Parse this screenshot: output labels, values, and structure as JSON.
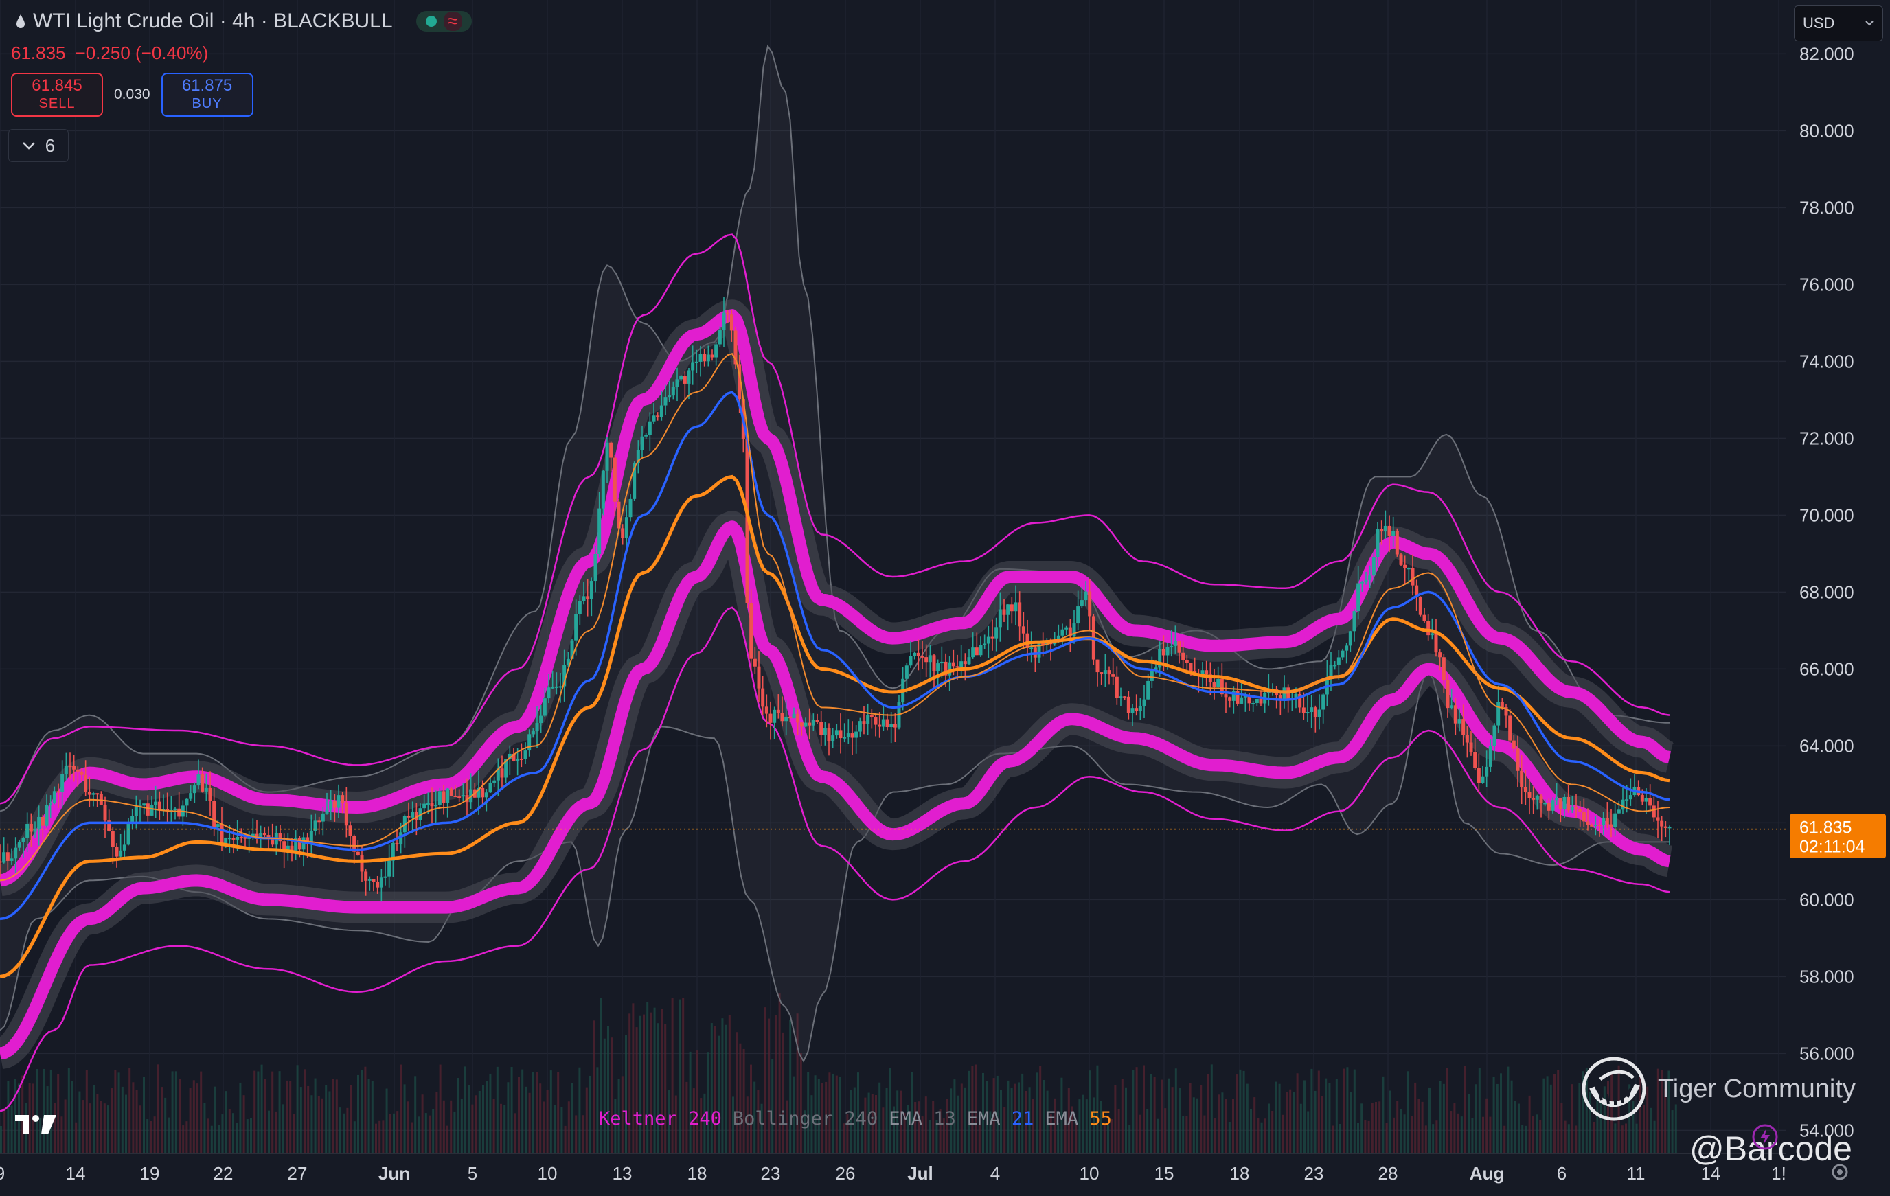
{
  "header": {
    "title": "WTI Light Crude Oil · 4h · BLACKBULL",
    "last": "61.835",
    "change": "−0.250 (−0.40%)",
    "sell_price": "61.845",
    "sell_label": "SELL",
    "spread": "0.030",
    "buy_price": "61.875",
    "buy_label": "BUY",
    "indicator_count": "6",
    "currency": "USD"
  },
  "watermark": {
    "brand": "Tiger Community",
    "handle": "@Barcode"
  },
  "colors": {
    "background": "#161a25",
    "up": "#26a69a",
    "down": "#ef5350",
    "keltner": "#e11ecf",
    "bollinger": "#6b6f78",
    "ema13": "#f28a2e",
    "ema21": "#2962ff",
    "ema55": "#ff8c1a"
  },
  "chart_data": {
    "type": "candlestick",
    "ylim": [
      53.4,
      83.4
    ],
    "yticks": [
      "82.000",
      "80.000",
      "78.000",
      "76.000",
      "74.000",
      "72.000",
      "70.000",
      "68.000",
      "66.000",
      "64.000",
      "62.000",
      "60.000",
      "58.000",
      "56.000",
      "54.000"
    ],
    "yvalues": [
      82,
      80,
      78,
      76,
      74,
      72,
      70,
      68,
      66,
      64,
      62,
      60,
      58,
      56,
      54
    ],
    "xticks": [
      "9",
      "14",
      "19",
      "22",
      "27",
      "Jun",
      "5",
      "10",
      "13",
      "18",
      "23",
      "26",
      "Jul",
      "4",
      "10",
      "15",
      "18",
      "23",
      "28",
      "Aug",
      "6",
      "11",
      "14",
      "1!"
    ],
    "current_price": 61.835,
    "current_price_label": "61.835",
    "countdown": "02:11:04",
    "legend": [
      {
        "name": "Keltner",
        "value": "240"
      },
      {
        "name": "Bollinger",
        "value": "240"
      },
      {
        "name": "EMA",
        "value": "13"
      },
      {
        "name": "EMA",
        "value": "21"
      },
      {
        "name": "EMA",
        "value": "55"
      }
    ],
    "price_path": [
      [
        0,
        61.0
      ],
      [
        0.02,
        62.0
      ],
      [
        0.04,
        63.4
      ],
      [
        0.055,
        62.6
      ],
      [
        0.065,
        61.3
      ],
      [
        0.08,
        62.4
      ],
      [
        0.1,
        62.2
      ],
      [
        0.11,
        63.2
      ],
      [
        0.125,
        61.6
      ],
      [
        0.145,
        61.7
      ],
      [
        0.165,
        61.4
      ],
      [
        0.19,
        62.5
      ],
      [
        0.2,
        61.0
      ],
      [
        0.21,
        60.4
      ],
      [
        0.23,
        62.2
      ],
      [
        0.25,
        62.7
      ],
      [
        0.27,
        62.8
      ],
      [
        0.29,
        63.8
      ],
      [
        0.31,
        65.4
      ],
      [
        0.33,
        68.0
      ],
      [
        0.34,
        71.8
      ],
      [
        0.348,
        69.5
      ],
      [
        0.36,
        72.2
      ],
      [
        0.38,
        73.5
      ],
      [
        0.4,
        74.3
      ],
      [
        0.408,
        75.3
      ],
      [
        0.415,
        73.0
      ],
      [
        0.42,
        66.5
      ],
      [
        0.43,
        64.8
      ],
      [
        0.45,
        64.6
      ],
      [
        0.47,
        64.2
      ],
      [
        0.49,
        64.7
      ],
      [
        0.5,
        64.4
      ],
      [
        0.51,
        66.4
      ],
      [
        0.53,
        66.0
      ],
      [
        0.55,
        66.6
      ],
      [
        0.565,
        67.7
      ],
      [
        0.58,
        66.5
      ],
      [
        0.6,
        67.0
      ],
      [
        0.607,
        67.9
      ],
      [
        0.615,
        66.0
      ],
      [
        0.635,
        65.0
      ],
      [
        0.655,
        66.6
      ],
      [
        0.67,
        65.8
      ],
      [
        0.7,
        65.1
      ],
      [
        0.72,
        65.4
      ],
      [
        0.735,
        64.8
      ],
      [
        0.75,
        66.4
      ],
      [
        0.765,
        68.5
      ],
      [
        0.775,
        69.8
      ],
      [
        0.79,
        68.4
      ],
      [
        0.8,
        67.0
      ],
      [
        0.815,
        64.8
      ],
      [
        0.83,
        63.0
      ],
      [
        0.84,
        65.0
      ],
      [
        0.855,
        62.8
      ],
      [
        0.87,
        62.5
      ],
      [
        0.9,
        62.0
      ],
      [
        0.915,
        62.9
      ],
      [
        0.935,
        61.8
      ]
    ],
    "keltner_mid": [
      [
        0,
        58.0
      ],
      [
        0.05,
        61.0
      ],
      [
        0.08,
        61.1
      ],
      [
        0.11,
        61.5
      ],
      [
        0.15,
        61.3
      ],
      [
        0.2,
        61.0
      ],
      [
        0.25,
        61.2
      ],
      [
        0.29,
        62.0
      ],
      [
        0.33,
        65.0
      ],
      [
        0.36,
        68.5
      ],
      [
        0.39,
        70.5
      ],
      [
        0.41,
        71.0
      ],
      [
        0.43,
        68.5
      ],
      [
        0.46,
        66.0
      ],
      [
        0.5,
        65.4
      ],
      [
        0.54,
        66.0
      ],
      [
        0.58,
        66.7
      ],
      [
        0.61,
        66.8
      ],
      [
        0.64,
        66.2
      ],
      [
        0.68,
        65.8
      ],
      [
        0.72,
        65.4
      ],
      [
        0.75,
        65.8
      ],
      [
        0.78,
        67.3
      ],
      [
        0.8,
        67.0
      ],
      [
        0.84,
        65.5
      ],
      [
        0.88,
        64.2
      ],
      [
        0.92,
        63.3
      ],
      [
        0.935,
        63.1
      ]
    ],
    "keltner_upper_thick": [
      [
        0,
        60.5
      ],
      [
        0.05,
        63.3
      ],
      [
        0.08,
        63.0
      ],
      [
        0.11,
        63.2
      ],
      [
        0.15,
        62.6
      ],
      [
        0.2,
        62.4
      ],
      [
        0.25,
        63.0
      ],
      [
        0.29,
        64.5
      ],
      [
        0.33,
        68.8
      ],
      [
        0.36,
        73.0
      ],
      [
        0.39,
        74.7
      ],
      [
        0.41,
        75.2
      ],
      [
        0.43,
        72.0
      ],
      [
        0.46,
        67.8
      ],
      [
        0.5,
        66.8
      ],
      [
        0.54,
        67.2
      ],
      [
        0.565,
        68.4
      ],
      [
        0.6,
        68.4
      ],
      [
        0.635,
        67.0
      ],
      [
        0.68,
        66.6
      ],
      [
        0.72,
        66.7
      ],
      [
        0.75,
        67.3
      ],
      [
        0.78,
        69.3
      ],
      [
        0.8,
        69.0
      ],
      [
        0.84,
        66.8
      ],
      [
        0.88,
        65.4
      ],
      [
        0.92,
        64.1
      ],
      [
        0.935,
        63.7
      ]
    ],
    "keltner_lower_thick": [
      [
        0,
        56.0
      ],
      [
        0.05,
        59.5
      ],
      [
        0.08,
        60.3
      ],
      [
        0.11,
        60.5
      ],
      [
        0.15,
        60.0
      ],
      [
        0.2,
        59.8
      ],
      [
        0.25,
        59.8
      ],
      [
        0.29,
        60.3
      ],
      [
        0.33,
        62.5
      ],
      [
        0.36,
        66.0
      ],
      [
        0.39,
        68.4
      ],
      [
        0.41,
        69.7
      ],
      [
        0.43,
        66.5
      ],
      [
        0.46,
        63.2
      ],
      [
        0.5,
        61.7
      ],
      [
        0.54,
        62.5
      ],
      [
        0.565,
        63.6
      ],
      [
        0.6,
        64.7
      ],
      [
        0.635,
        64.2
      ],
      [
        0.68,
        63.5
      ],
      [
        0.72,
        63.3
      ],
      [
        0.75,
        63.7
      ],
      [
        0.78,
        65.2
      ],
      [
        0.8,
        66.0
      ],
      [
        0.84,
        64.0
      ],
      [
        0.88,
        62.3
      ],
      [
        0.92,
        61.3
      ],
      [
        0.935,
        61.0
      ]
    ],
    "keltner_outer_upper": [
      [
        0,
        62.5
      ],
      [
        0.03,
        64.2
      ],
      [
        0.05,
        64.5
      ],
      [
        0.1,
        64.4
      ],
      [
        0.15,
        64.0
      ],
      [
        0.2,
        63.5
      ],
      [
        0.25,
        64.0
      ],
      [
        0.29,
        66.0
      ],
      [
        0.33,
        71.0
      ],
      [
        0.36,
        75.2
      ],
      [
        0.39,
        76.8
      ],
      [
        0.41,
        77.3
      ],
      [
        0.43,
        74.0
      ],
      [
        0.46,
        69.5
      ],
      [
        0.5,
        68.4
      ],
      [
        0.54,
        68.8
      ],
      [
        0.58,
        69.8
      ],
      [
        0.61,
        70.0
      ],
      [
        0.64,
        68.8
      ],
      [
        0.68,
        68.2
      ],
      [
        0.72,
        68.1
      ],
      [
        0.75,
        68.8
      ],
      [
        0.78,
        70.8
      ],
      [
        0.8,
        70.6
      ],
      [
        0.84,
        68.0
      ],
      [
        0.88,
        66.2
      ],
      [
        0.92,
        65.0
      ],
      [
        0.935,
        64.8
      ]
    ],
    "keltner_outer_lower": [
      [
        0,
        54.5
      ],
      [
        0.03,
        56.6
      ],
      [
        0.05,
        58.3
      ],
      [
        0.1,
        58.8
      ],
      [
        0.15,
        58.2
      ],
      [
        0.2,
        57.6
      ],
      [
        0.25,
        58.4
      ],
      [
        0.29,
        58.8
      ],
      [
        0.33,
        60.8
      ],
      [
        0.36,
        63.9
      ],
      [
        0.39,
        66.4
      ],
      [
        0.41,
        67.6
      ],
      [
        0.43,
        64.6
      ],
      [
        0.46,
        61.4
      ],
      [
        0.5,
        60.0
      ],
      [
        0.54,
        61.0
      ],
      [
        0.58,
        62.4
      ],
      [
        0.61,
        63.2
      ],
      [
        0.64,
        62.8
      ],
      [
        0.68,
        62.1
      ],
      [
        0.72,
        61.8
      ],
      [
        0.75,
        62.3
      ],
      [
        0.78,
        63.7
      ],
      [
        0.8,
        64.4
      ],
      [
        0.84,
        62.4
      ],
      [
        0.88,
        60.8
      ],
      [
        0.92,
        60.4
      ],
      [
        0.935,
        60.2
      ]
    ],
    "bollinger_upper": [
      [
        0,
        62.3
      ],
      [
        0.03,
        64.4
      ],
      [
        0.05,
        64.8
      ],
      [
        0.08,
        63.8
      ],
      [
        0.11,
        63.8
      ],
      [
        0.15,
        62.8
      ],
      [
        0.2,
        63.2
      ],
      [
        0.25,
        64.0
      ],
      [
        0.3,
        67.5
      ],
      [
        0.32,
        72.0
      ],
      [
        0.34,
        76.5
      ],
      [
        0.36,
        75.0
      ],
      [
        0.38,
        74.0
      ],
      [
        0.4,
        74.5
      ],
      [
        0.42,
        78.5
      ],
      [
        0.43,
        82.2
      ],
      [
        0.44,
        81.0
      ],
      [
        0.45,
        76.0
      ],
      [
        0.47,
        67.0
      ],
      [
        0.5,
        65.5
      ],
      [
        0.53,
        67.0
      ],
      [
        0.56,
        68.6
      ],
      [
        0.6,
        68.5
      ],
      [
        0.63,
        66.3
      ],
      [
        0.67,
        67.0
      ],
      [
        0.71,
        66.0
      ],
      [
        0.74,
        66.2
      ],
      [
        0.77,
        71.0
      ],
      [
        0.79,
        71.0
      ],
      [
        0.81,
        72.1
      ],
      [
        0.83,
        70.5
      ],
      [
        0.86,
        67.0
      ],
      [
        0.9,
        64.8
      ],
      [
        0.935,
        64.6
      ]
    ],
    "bollinger_lower": [
      [
        0,
        56.6
      ],
      [
        0.02,
        59.5
      ],
      [
        0.05,
        60.5
      ],
      [
        0.08,
        60.6
      ],
      [
        0.11,
        60.2
      ],
      [
        0.15,
        59.5
      ],
      [
        0.2,
        59.2
      ],
      [
        0.24,
        58.9
      ],
      [
        0.26,
        60.0
      ],
      [
        0.29,
        61.0
      ],
      [
        0.32,
        61.5
      ],
      [
        0.335,
        58.8
      ],
      [
        0.35,
        61.8
      ],
      [
        0.37,
        64.5
      ],
      [
        0.4,
        64.2
      ],
      [
        0.42,
        60.0
      ],
      [
        0.44,
        57.2
      ],
      [
        0.45,
        55.8
      ],
      [
        0.46,
        57.5
      ],
      [
        0.48,
        61.5
      ],
      [
        0.5,
        62.8
      ],
      [
        0.53,
        63.0
      ],
      [
        0.56,
        63.8
      ],
      [
        0.6,
        64.0
      ],
      [
        0.63,
        63.0
      ],
      [
        0.67,
        62.8
      ],
      [
        0.71,
        62.4
      ],
      [
        0.74,
        63.0
      ],
      [
        0.76,
        61.7
      ],
      [
        0.78,
        62.5
      ],
      [
        0.8,
        65.9
      ],
      [
        0.82,
        62.0
      ],
      [
        0.84,
        61.2
      ],
      [
        0.87,
        60.9
      ],
      [
        0.9,
        61.5
      ],
      [
        0.935,
        61.5
      ]
    ],
    "ema13": [
      [
        0,
        60.5
      ],
      [
        0.05,
        62.6
      ],
      [
        0.1,
        62.3
      ],
      [
        0.15,
        61.6
      ],
      [
        0.2,
        61.4
      ],
      [
        0.25,
        62.4
      ],
      [
        0.3,
        64.0
      ],
      [
        0.33,
        67.0
      ],
      [
        0.36,
        71.5
      ],
      [
        0.39,
        73.2
      ],
      [
        0.41,
        74.2
      ],
      [
        0.43,
        69.0
      ],
      [
        0.46,
        65.0
      ],
      [
        0.5,
        64.8
      ],
      [
        0.54,
        65.8
      ],
      [
        0.58,
        66.6
      ],
      [
        0.61,
        67.0
      ],
      [
        0.64,
        65.8
      ],
      [
        0.68,
        65.5
      ],
      [
        0.72,
        65.4
      ],
      [
        0.75,
        65.8
      ],
      [
        0.78,
        68.1
      ],
      [
        0.8,
        68.5
      ],
      [
        0.84,
        65.0
      ],
      [
        0.88,
        63.0
      ],
      [
        0.92,
        62.3
      ],
      [
        0.935,
        62.4
      ]
    ],
    "ema21": [
      [
        0,
        59.5
      ],
      [
        0.05,
        62.0
      ],
      [
        0.1,
        62.0
      ],
      [
        0.15,
        61.6
      ],
      [
        0.2,
        61.3
      ],
      [
        0.25,
        62.0
      ],
      [
        0.3,
        63.3
      ],
      [
        0.33,
        65.7
      ],
      [
        0.36,
        70.0
      ],
      [
        0.39,
        72.3
      ],
      [
        0.41,
        73.2
      ],
      [
        0.43,
        70.0
      ],
      [
        0.46,
        66.5
      ],
      [
        0.5,
        65.0
      ],
      [
        0.54,
        65.8
      ],
      [
        0.58,
        66.4
      ],
      [
        0.61,
        66.8
      ],
      [
        0.64,
        66.0
      ],
      [
        0.68,
        65.4
      ],
      [
        0.72,
        65.2
      ],
      [
        0.75,
        65.6
      ],
      [
        0.78,
        67.6
      ],
      [
        0.8,
        68.0
      ],
      [
        0.84,
        65.6
      ],
      [
        0.88,
        63.6
      ],
      [
        0.92,
        62.8
      ],
      [
        0.935,
        62.6
      ]
    ]
  }
}
